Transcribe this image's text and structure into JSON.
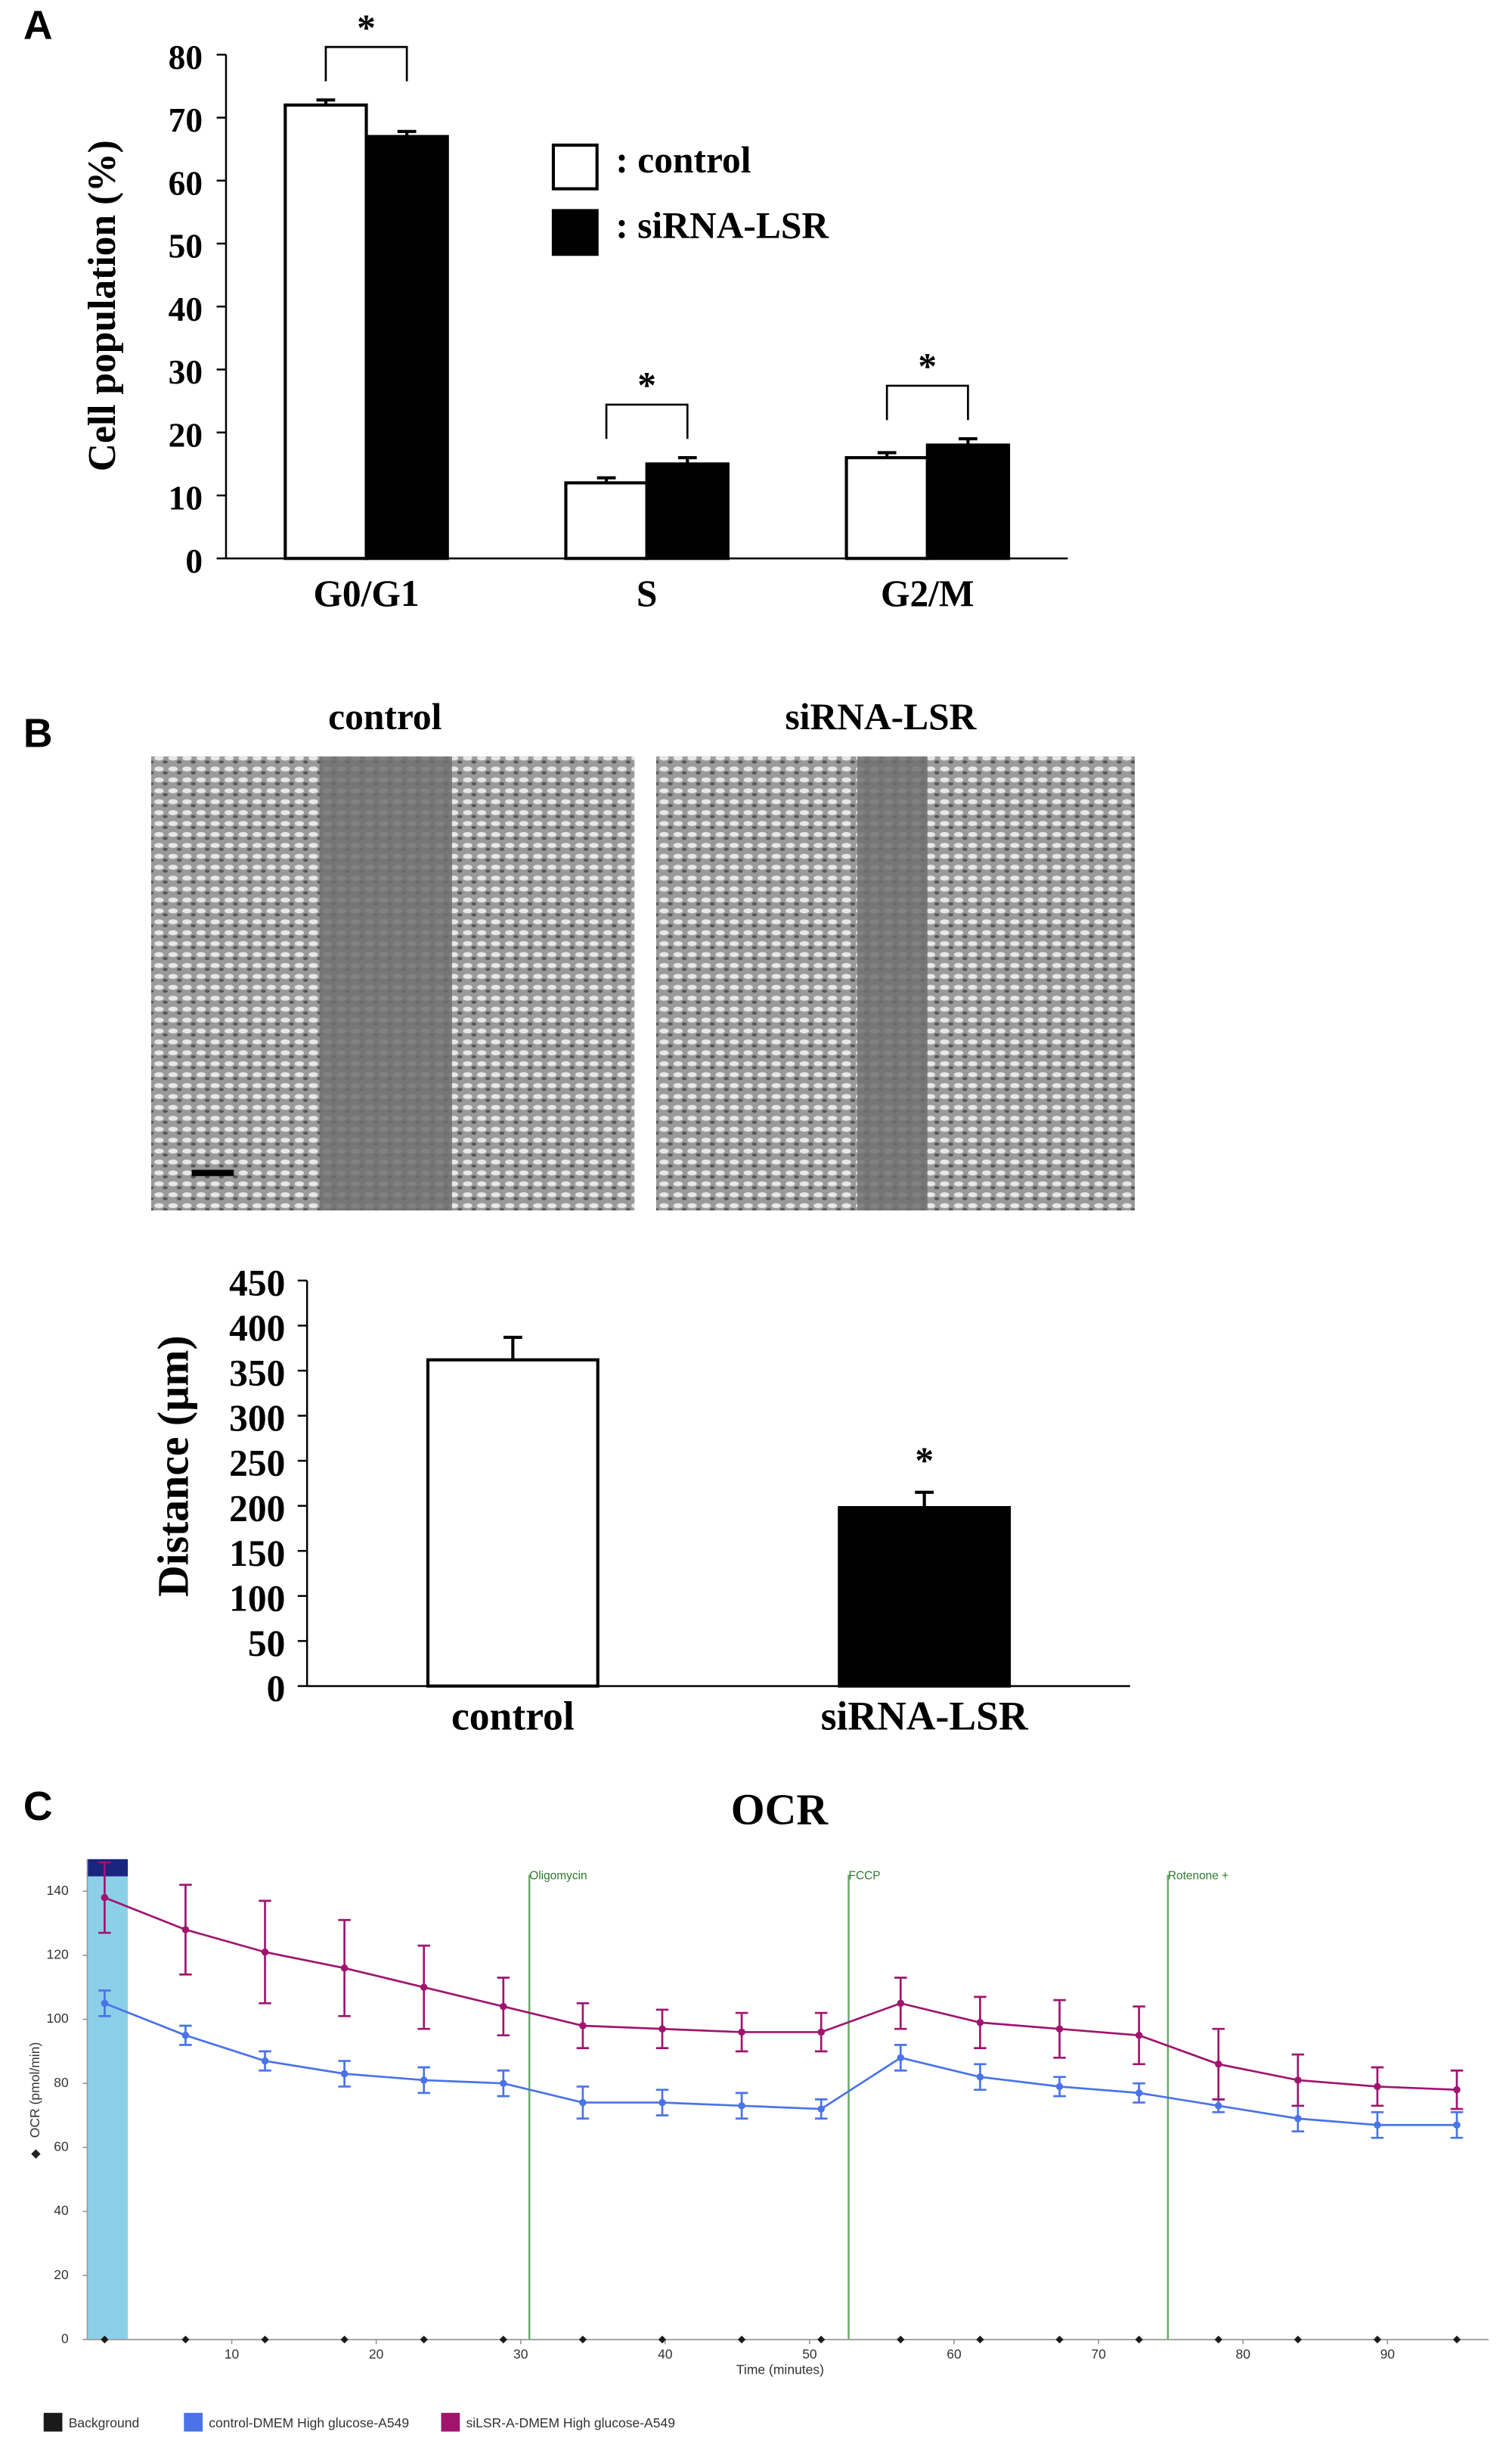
{
  "chart_data": [
    {
      "type": "bar",
      "panel": "A",
      "ylabel": "Cell population (%)",
      "categories": [
        "G0/G1",
        "S",
        "G2/M"
      ],
      "series": [
        {
          "name": ": control",
          "color": "#ffffff",
          "values": [
            72,
            12,
            16
          ],
          "errors": [
            0.8,
            0.8,
            0.8
          ]
        },
        {
          "name": ": siRNA-LSR",
          "color": "#000000",
          "values": [
            67,
            15,
            18
          ],
          "errors": [
            0.8,
            1,
            1
          ]
        }
      ],
      "significance": [
        "*",
        "*",
        "*"
      ],
      "ylim": [
        0,
        80
      ],
      "yticks": [
        0,
        10,
        20,
        30,
        40,
        50,
        60,
        70,
        80
      ]
    },
    {
      "type": "bar",
      "panel": "B",
      "image_labels": [
        "control",
        "siRNA-LSR"
      ],
      "ylabel": "Distance (µm)",
      "categories": [
        "control",
        "siRNA-LSR"
      ],
      "values": [
        362,
        198
      ],
      "errors": [
        25,
        17
      ],
      "colors": [
        "#ffffff",
        "#000000"
      ],
      "significance": [
        null,
        "*"
      ],
      "ylim": [
        0,
        450
      ],
      "yticks": [
        0,
        50,
        100,
        150,
        200,
        250,
        300,
        350,
        400,
        450
      ]
    },
    {
      "type": "line",
      "panel": "C",
      "title": "OCR",
      "xlabel": "Time (minutes)",
      "ylabel": "OCR (pmol/min)",
      "x": [
        1.2,
        6.8,
        12.3,
        17.8,
        23.3,
        28.8,
        34.3,
        39.8,
        45.3,
        50.8,
        56.3,
        61.8,
        67.3,
        72.8,
        78.3,
        83.8,
        89.3,
        94.8
      ],
      "series": [
        {
          "name": "Background",
          "color": "#1a1a1a",
          "values": [
            0,
            0,
            0,
            0,
            0,
            0,
            0,
            0,
            0,
            0,
            0,
            0,
            0,
            0,
            0,
            0,
            0,
            0
          ]
        },
        {
          "name": "control-DMEM High glucose-A549",
          "color": "#4a73e8",
          "values": [
            105,
            95,
            87,
            83,
            81,
            80,
            74,
            74,
            73,
            72,
            88,
            82,
            79,
            77,
            73,
            69,
            67,
            67
          ],
          "errors": [
            4,
            3,
            3,
            4,
            4,
            4,
            5,
            4,
            4,
            3,
            4,
            4,
            3,
            3,
            2,
            4,
            4,
            4
          ]
        },
        {
          "name": "siLSR-A-DMEM High glucose-A549",
          "color": "#a0146e",
          "values": [
            138,
            128,
            121,
            116,
            110,
            104,
            98,
            97,
            96,
            96,
            105,
            99,
            97,
            95,
            86,
            81,
            79,
            78
          ],
          "errors": [
            11,
            14,
            16,
            15,
            13,
            9,
            7,
            6,
            6,
            6,
            8,
            8,
            9,
            9,
            11,
            8,
            6,
            6
          ]
        }
      ],
      "injections": [
        {
          "x": 30.6,
          "label": "Oligomycin"
        },
        {
          "x": 52.7,
          "label": "FCCP"
        },
        {
          "x": 74.8,
          "label": "Rotenone +"
        }
      ],
      "xlim": [
        0,
        97
      ],
      "xticks": [
        10,
        20,
        30,
        40,
        50,
        60,
        70,
        80,
        90
      ],
      "ylim": [
        0,
        150
      ],
      "yticks": [
        0,
        20,
        40,
        60,
        80,
        100,
        120,
        140
      ]
    }
  ]
}
